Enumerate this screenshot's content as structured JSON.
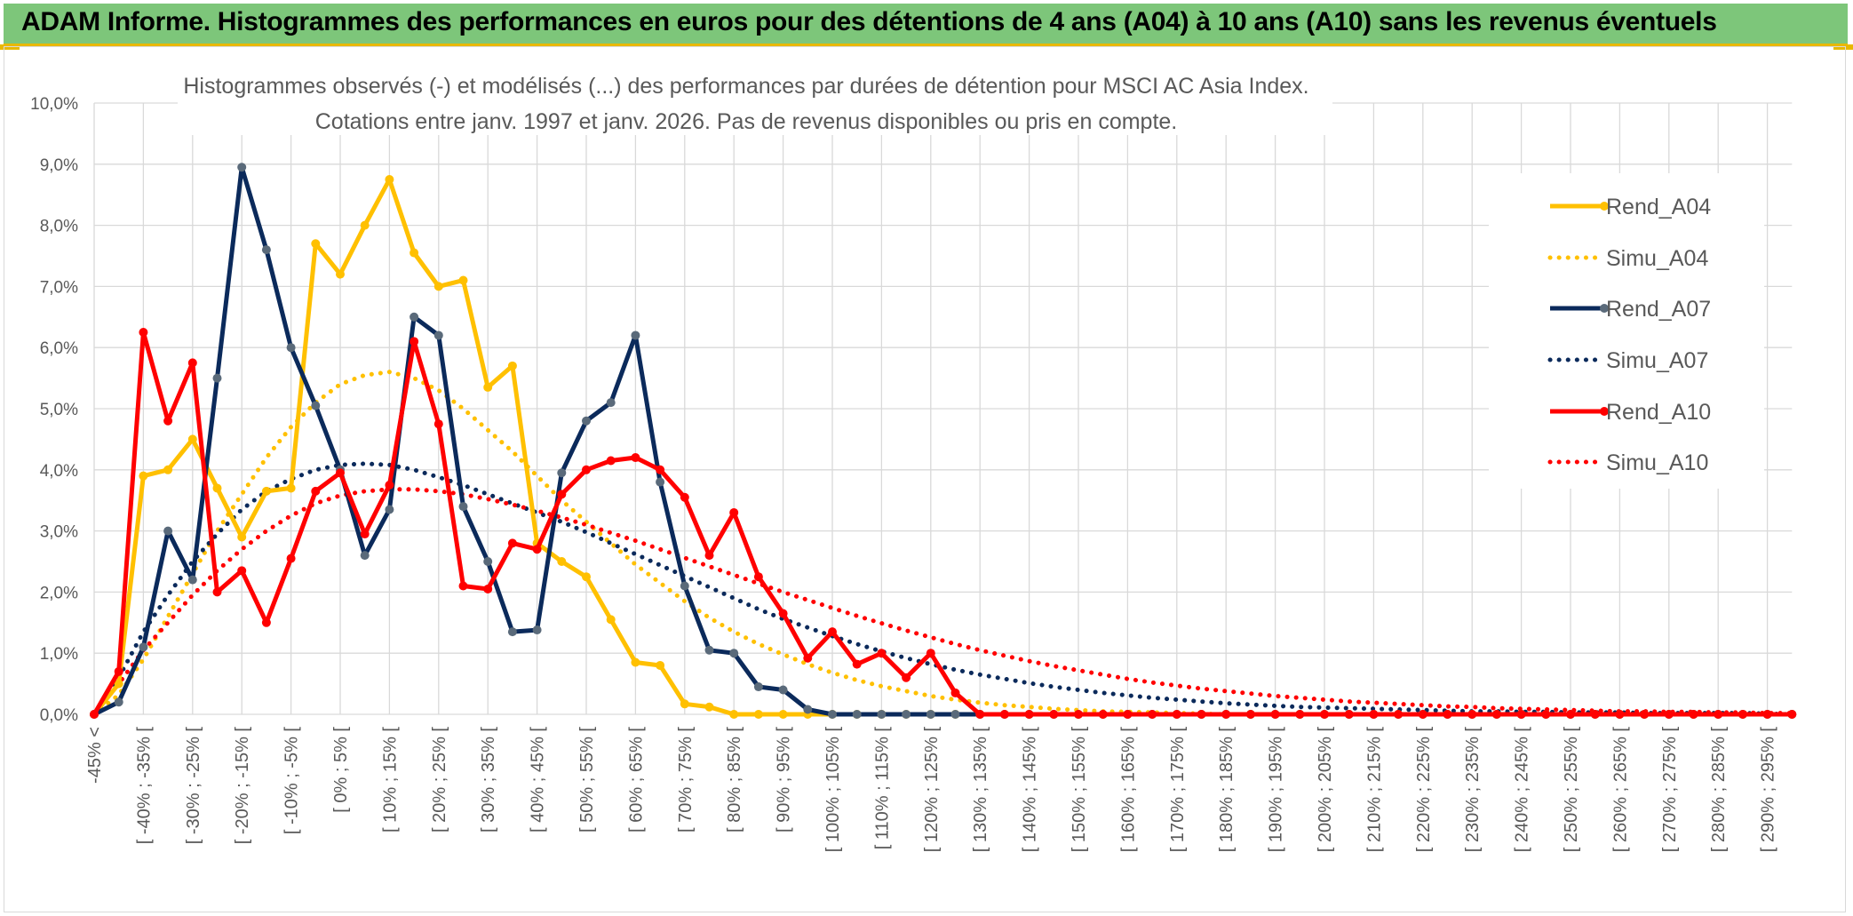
{
  "header": {
    "title": "ADAM Informe. Histogrammes des performances en euros pour des détentions de 4 ans (A04) à 10 ans (A10) sans les revenus éventuels"
  },
  "chart_data": {
    "type": "line",
    "title_line1": "Histogrammes observés (-) et modélisés (...) des performances par durées de détention pour MSCI AC Asia Index.",
    "title_line2": "Cotations entre janv. 1997 et janv. 2026. Pas de revenus disponibles ou pris en compte.",
    "xlabel": "",
    "ylabel": "",
    "ylim": [
      0,
      10
    ],
    "y_ticks": [
      "0,0%",
      "1,0%",
      "2,0%",
      "3,0%",
      "4,0%",
      "5,0%",
      "6,0%",
      "7,0%",
      "8,0%",
      "9,0%",
      "10,0%"
    ],
    "grid": true,
    "legend_position": "right",
    "x_labels": [
      "-45% <",
      "[ -40% ; -35% [",
      "[ -30% ; -25% [",
      "[ -20% ; -15% [",
      "[ -10% ; -5% [",
      "[ 0% ; 5% [",
      "[ 10% ; 15% [",
      "[ 20% ; 25% [",
      "[ 30% ; 35% [",
      "[ 40% ; 45% [",
      "[ 50% ; 55% [",
      "[ 60% ; 65% [",
      "[ 70% ; 75% [",
      "[ 80% ; 85% [",
      "[ 90% ; 95% [",
      "[ 100% ; 105% [",
      "[ 110% ; 115% [",
      "[ 120% ; 125% [",
      "[ 130% ; 135% [",
      "[ 140% ; 145% [",
      "[ 150% ; 155% [",
      "[ 160% ; 165% [",
      "[ 170% ; 175% [",
      "[ 180% ; 185% [",
      "[ 190% ; 195% [",
      "[ 200% ; 205% [",
      "[ 210% ; 215% [",
      "[ 220% ; 225% [",
      "[ 230% ; 235% [",
      "[ 240% ; 245% [",
      "[ 250% ; 255% [",
      "[ 260% ; 265% [",
      "[ 270% ; 275% [",
      "[ 280% ; 285% [",
      "[ 290% ; 295% ["
    ],
    "series": [
      {
        "name": "Rend_A04",
        "style": "solid",
        "color": "#ffc000",
        "values": [
          0.0,
          0.5,
          3.9,
          4.0,
          4.5,
          3.7,
          2.9,
          3.65,
          3.7,
          7.7,
          7.2,
          8.0,
          8.75,
          7.55,
          7.0,
          7.1,
          5.35,
          5.7,
          2.8,
          2.5,
          2.25,
          1.55,
          0.85,
          0.8,
          0.17,
          0.12,
          0.0,
          0.0,
          0.0,
          0.0,
          0.0
        ]
      },
      {
        "name": "Simu_A04",
        "style": "dotted",
        "color": "#ffc000",
        "values": [
          0.0,
          0.32,
          0.9,
          1.6,
          2.3,
          3.0,
          3.6,
          4.2,
          4.7,
          5.1,
          5.4,
          5.55,
          5.6,
          5.5,
          5.3,
          5.0,
          4.65,
          4.3,
          3.9,
          3.5,
          3.15,
          2.8,
          2.45,
          2.15,
          1.85,
          1.58,
          1.35,
          1.15,
          0.98,
          0.82,
          0.68,
          0.56,
          0.46,
          0.38,
          0.3,
          0.24,
          0.19,
          0.15,
          0.12,
          0.09,
          0.07,
          0.05,
          0.04,
          0.03,
          0.02,
          0.01,
          0.0
        ]
      },
      {
        "name": "Rend_A07",
        "style": "solid",
        "color": "#0b2a5b",
        "values": [
          0.0,
          0.2,
          1.1,
          3.0,
          2.2,
          5.5,
          8.95,
          7.6,
          6.0,
          5.05,
          4.0,
          2.6,
          3.35,
          6.5,
          6.2,
          3.4,
          2.5,
          1.35,
          1.38,
          3.95,
          4.8,
          5.1,
          6.2,
          3.8,
          2.1,
          1.05,
          1.0,
          0.45,
          0.4,
          0.08,
          0.0,
          0.0,
          0.0,
          0.0,
          0.0,
          0.0,
          0.0,
          0.0
        ]
      },
      {
        "name": "Simu_A07",
        "style": "dotted",
        "color": "#0b2a5b",
        "values": [
          0.0,
          0.6,
          1.35,
          1.95,
          2.5,
          2.95,
          3.35,
          3.65,
          3.85,
          4.0,
          4.08,
          4.1,
          4.08,
          4.0,
          3.88,
          3.75,
          3.6,
          3.45,
          3.3,
          3.15,
          2.98,
          2.8,
          2.62,
          2.44,
          2.26,
          2.08,
          1.9,
          1.72,
          1.56,
          1.42,
          1.28,
          1.15,
          1.03,
          0.92,
          0.82,
          0.73,
          0.65,
          0.58,
          0.51,
          0.45,
          0.4,
          0.35,
          0.31,
          0.27,
          0.24,
          0.21,
          0.18,
          0.16,
          0.14,
          0.12,
          0.11,
          0.1,
          0.09,
          0.08,
          0.07,
          0.06,
          0.05,
          0.05,
          0.04,
          0.04,
          0.03,
          0.03,
          0.03,
          0.02,
          0.02,
          0.02,
          0.02,
          0.02,
          0.01
        ]
      },
      {
        "name": "Rend_A10",
        "style": "solid",
        "color": "#ff0000",
        "values": [
          0.0,
          0.7,
          6.25,
          4.8,
          5.75,
          2.0,
          2.35,
          1.5,
          2.55,
          3.65,
          3.95,
          2.95,
          3.75,
          6.1,
          4.75,
          2.1,
          2.05,
          2.8,
          2.7,
          3.6,
          4.0,
          4.15,
          4.2,
          4.0,
          3.55,
          2.6,
          3.3,
          2.25,
          1.65,
          0.92,
          1.35,
          0.82,
          1.0,
          0.6,
          1.0,
          0.35,
          0.0,
          0.0,
          0.0,
          0.0,
          0.0,
          0.0,
          0.0,
          0.0,
          0.0,
          0.0,
          0.0,
          0.0,
          0.0,
          0.0,
          0.0,
          0.0,
          0.0,
          0.0,
          0.0,
          0.0,
          0.0,
          0.0,
          0.0,
          0.0,
          0.0,
          0.0,
          0.0,
          0.0,
          0.0,
          0.0,
          0.0,
          0.0,
          0.0,
          0.0
        ]
      },
      {
        "name": "Simu_A10",
        "style": "dotted",
        "color": "#ff0000",
        "values": [
          0.0,
          0.5,
          1.05,
          1.5,
          1.95,
          2.35,
          2.7,
          3.0,
          3.25,
          3.45,
          3.58,
          3.65,
          3.68,
          3.68,
          3.65,
          3.6,
          3.52,
          3.43,
          3.33,
          3.22,
          3.1,
          2.97,
          2.84,
          2.7,
          2.56,
          2.42,
          2.28,
          2.14,
          2.0,
          1.87,
          1.74,
          1.61,
          1.49,
          1.37,
          1.26,
          1.15,
          1.05,
          0.96,
          0.87,
          0.79,
          0.72,
          0.65,
          0.58,
          0.52,
          0.47,
          0.42,
          0.38,
          0.34,
          0.3,
          0.27,
          0.24,
          0.21,
          0.19,
          0.17,
          0.15,
          0.13,
          0.12,
          0.1,
          0.09,
          0.08,
          0.07,
          0.06,
          0.05,
          0.05,
          0.04,
          0.04,
          0.03,
          0.03,
          0.02,
          0.02
        ]
      }
    ]
  }
}
